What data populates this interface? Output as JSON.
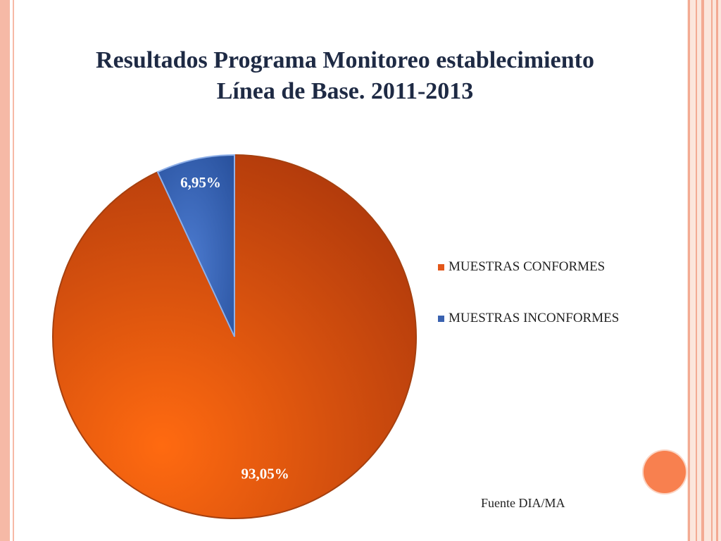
{
  "slide": {
    "title_line1": "Resultados Programa Monitoreo establecimiento",
    "title_line2": "Línea de Base. 2011-2013",
    "source": "Fuente DIA/MA"
  },
  "chart_data": {
    "type": "pie",
    "title": "",
    "slices": [
      {
        "label": "MUESTRAS CONFORMES",
        "value": 93.05,
        "display": "93,05%",
        "color": "#e3571a"
      },
      {
        "label": "MUESTRAS INCONFORMES",
        "value": 6.95,
        "display": "6,95%",
        "color": "#3a62b0"
      }
    ],
    "legend": "right",
    "data_labels": true
  }
}
